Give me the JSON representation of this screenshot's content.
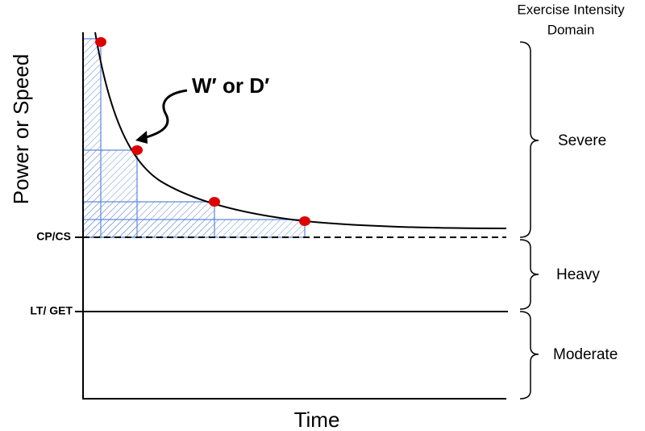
{
  "axes": {
    "y_label": "Power or Speed",
    "x_label": "Time"
  },
  "curve_label": "W′ or D′",
  "thresholds": {
    "upper": "CP/CS",
    "lower": "LT/ GET"
  },
  "domains": {
    "title_line1": "Exercise Intensity",
    "title_line2": "Domain",
    "items": [
      "Severe",
      "Heavy",
      "Moderate"
    ]
  }
}
